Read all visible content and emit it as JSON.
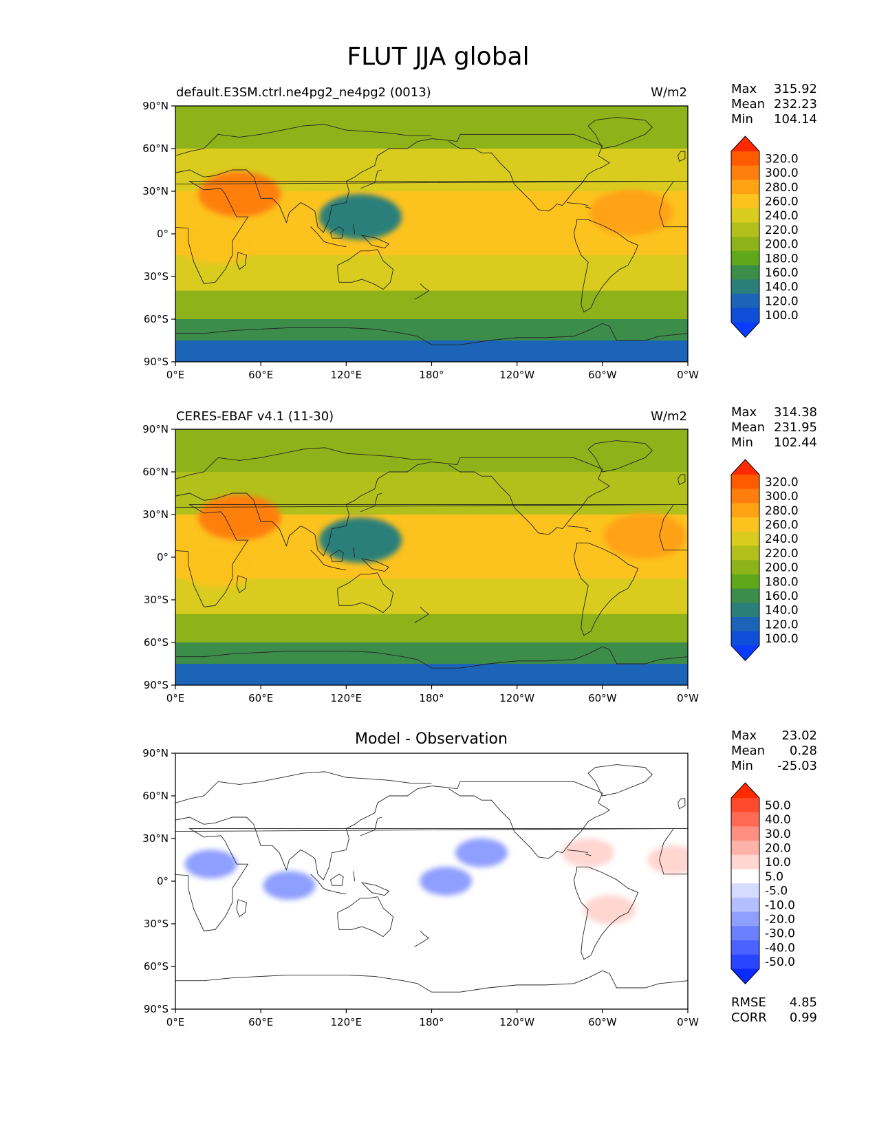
{
  "figure": {
    "title": "FLUT JJA global"
  },
  "panels": [
    {
      "left_title": "default.E3SM.ctrl.ne4pg2_ne4pg2 (0013)",
      "center_title": "",
      "units": "W/m2",
      "stats": [
        {
          "label": "Max",
          "value": "315.92"
        },
        {
          "label": "Mean",
          "value": "232.23"
        },
        {
          "label": "Min",
          "value": "104.14"
        }
      ],
      "colorbar": "abs"
    },
    {
      "left_title": "CERES-EBAF v4.1 (11-30)",
      "center_title": "",
      "units": "W/m2",
      "stats": [
        {
          "label": "Max",
          "value": "314.38"
        },
        {
          "label": "Mean",
          "value": "231.95"
        },
        {
          "label": "Min",
          "value": "102.44"
        }
      ],
      "colorbar": "abs"
    },
    {
      "left_title": "",
      "center_title": "Model - Observation",
      "units": "",
      "stats": [
        {
          "label": "Max",
          "value": "23.02"
        },
        {
          "label": "Mean",
          "value": "0.28"
        },
        {
          "label": "Min",
          "value": "-25.03"
        }
      ],
      "colorbar": "diff",
      "extra_stats": [
        {
          "label": "RMSE",
          "value": "4.85"
        },
        {
          "label": "CORR",
          "value": "0.99"
        }
      ]
    }
  ],
  "axes": {
    "x_ticks": [
      "0°E",
      "60°E",
      "120°E",
      "180°",
      "120°W",
      "60°W",
      "0°W"
    ],
    "y_ticks": [
      "90°N",
      "60°N",
      "30°N",
      "0°",
      "30°S",
      "60°S",
      "90°S"
    ]
  },
  "colorbars": {
    "abs": {
      "levels": [
        "320.0",
        "300.0",
        "280.0",
        "260.0",
        "240.0",
        "220.0",
        "200.0",
        "180.0",
        "160.0",
        "140.0",
        "120.0",
        "100.0"
      ],
      "colors": [
        "#ff2a00",
        "#ff5a00",
        "#ff7f0e",
        "#ffa214",
        "#fcc21e",
        "#d9cc1f",
        "#b2c01c",
        "#8eb31a",
        "#5fa81a",
        "#3c8c4a",
        "#2a7f7a",
        "#1b64b7",
        "#0f4fd8",
        "#0a3cff"
      ]
    },
    "diff": {
      "levels": [
        "50.0",
        "40.0",
        "30.0",
        "20.0",
        "10.0",
        "5.0",
        "-5.0",
        "-10.0",
        "-20.0",
        "-30.0",
        "-40.0",
        "-50.0"
      ],
      "colors": [
        "#ff2a00",
        "#ff4b2b",
        "#ff6a55",
        "#ff8f80",
        "#ffb3a8",
        "#ffd6d0",
        "#ffffff",
        "#d6dcff",
        "#b3bfff",
        "#8f9fff",
        "#6a80ff",
        "#4b62ff",
        "#2a45ff",
        "#0a2aff"
      ]
    }
  },
  "chart_data": [
    {
      "type": "heatmap",
      "title": "default.E3SM.ctrl.ne4pg2_ne4pg2 (0013)",
      "units": "W/m2",
      "x_range": [
        0,
        360
      ],
      "y_range": [
        -90,
        90
      ],
      "levels": [
        100,
        120,
        140,
        160,
        180,
        200,
        220,
        240,
        260,
        280,
        300,
        320
      ],
      "bands": [
        {
          "lat": [
            60,
            90
          ],
          "value": 205
        },
        {
          "lat": [
            30,
            60
          ],
          "value": 240
        },
        {
          "lat": [
            -15,
            30
          ],
          "value": 262
        },
        {
          "lat": [
            -40,
            -15
          ],
          "value": 250
        },
        {
          "lat": [
            -60,
            -40
          ],
          "value": 200
        },
        {
          "lat": [
            -75,
            -60
          ],
          "value": 170
        },
        {
          "lat": [
            -90,
            -75
          ],
          "value": 125
        }
      ],
      "features": [
        {
          "lon": 45,
          "lat": 28,
          "value": 300
        },
        {
          "lon": 130,
          "lat": 12,
          "value": 150
        },
        {
          "lon": 320,
          "lat": 15,
          "value": 285
        },
        {
          "lon": 30,
          "lat": -5,
          "value": 275
        }
      ]
    },
    {
      "type": "heatmap",
      "title": "CERES-EBAF v4.1 (11-30)",
      "units": "W/m2",
      "x_range": [
        0,
        360
      ],
      "y_range": [
        -90,
        90
      ],
      "levels": [
        100,
        120,
        140,
        160,
        180,
        200,
        220,
        240,
        260,
        280,
        300,
        320
      ],
      "bands": [
        {
          "lat": [
            60,
            90
          ],
          "value": 205
        },
        {
          "lat": [
            30,
            60
          ],
          "value": 238
        },
        {
          "lat": [
            -15,
            30
          ],
          "value": 262
        },
        {
          "lat": [
            -40,
            -15
          ],
          "value": 250
        },
        {
          "lat": [
            -60,
            -40
          ],
          "value": 200
        },
        {
          "lat": [
            -75,
            -60
          ],
          "value": 170
        },
        {
          "lat": [
            -90,
            -75
          ],
          "value": 120
        }
      ],
      "features": [
        {
          "lon": 45,
          "lat": 28,
          "value": 300
        },
        {
          "lon": 130,
          "lat": 12,
          "value": 150
        },
        {
          "lon": 330,
          "lat": 15,
          "value": 280
        },
        {
          "lon": 30,
          "lat": -5,
          "value": 275
        }
      ]
    },
    {
      "type": "heatmap",
      "title": "Model - Observation",
      "x_range": [
        0,
        360
      ],
      "y_range": [
        -90,
        90
      ],
      "levels": [
        -50,
        -40,
        -30,
        -20,
        -10,
        -5,
        5,
        10,
        20,
        30,
        40,
        50
      ],
      "features": [
        {
          "lon": 25,
          "lat": 12,
          "value": -18
        },
        {
          "lon": 80,
          "lat": -3,
          "value": -15
        },
        {
          "lon": 190,
          "lat": 0,
          "value": -15
        },
        {
          "lon": 215,
          "lat": 20,
          "value": -12
        },
        {
          "lon": 290,
          "lat": 20,
          "value": 15
        },
        {
          "lon": 350,
          "lat": 15,
          "value": 15
        },
        {
          "lon": 125,
          "lat": 0,
          "value": 8
        },
        {
          "lon": 305,
          "lat": -20,
          "value": 10
        }
      ]
    }
  ]
}
